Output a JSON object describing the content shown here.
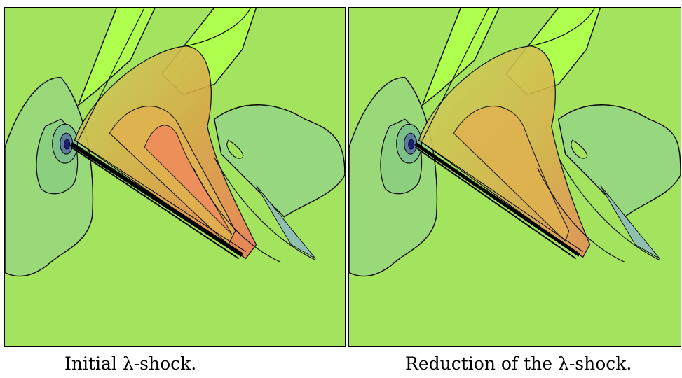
{
  "figure": {
    "panels": [
      {
        "caption": "Initial λ-shock."
      },
      {
        "caption": "Reduction of the λ-shock."
      }
    ]
  },
  "colors": {
    "background": "#a4e35e",
    "upper_plume": "#afff4f",
    "left_lobe": "#99d97a",
    "right_lobe": "#97d780",
    "core_dark": "#1f1f7a",
    "warm_core": "#d9a94a",
    "hot_core": "#f07a5a",
    "contour": "#000000"
  }
}
